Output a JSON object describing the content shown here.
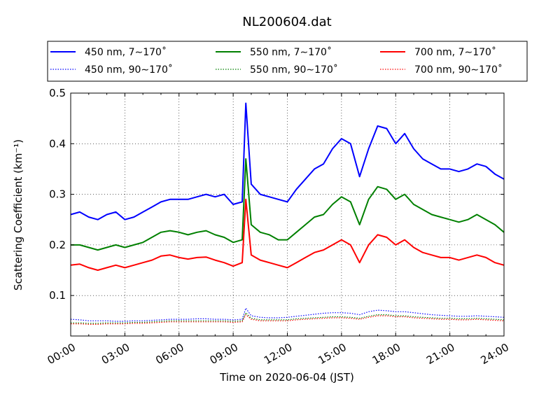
{
  "chart_data": {
    "type": "line",
    "title": "NL200604.dat",
    "xlabel": "Time on 2020-06-04 (JST)",
    "ylabel": "Scattering Coefficient (km⁻¹)",
    "x_unit": "hour (JST)",
    "xlim": [
      0,
      24
    ],
    "ylim": [
      0.02,
      0.5
    ],
    "xticks": [
      0,
      3,
      6,
      9,
      12,
      15,
      18,
      21,
      24
    ],
    "xtick_labels": [
      "00:00",
      "03:00",
      "06:00",
      "09:00",
      "12:00",
      "15:00",
      "18:00",
      "21:00",
      "24:00"
    ],
    "yticks": [
      0.1,
      0.2,
      0.3,
      0.4,
      0.5
    ],
    "ytick_labels": [
      "0.1",
      "0.2",
      "0.3",
      "0.4",
      "0.5"
    ],
    "grid": true,
    "legend_position": "top-outside",
    "x": [
      0,
      0.5,
      1,
      1.5,
      2,
      2.5,
      3,
      3.5,
      4,
      4.5,
      5,
      5.5,
      6,
      6.5,
      7,
      7.5,
      8,
      8.5,
      9,
      9.5,
      9.7,
      10,
      10.5,
      11,
      11.5,
      12,
      12.5,
      13,
      13.5,
      14,
      14.5,
      15,
      15.5,
      16,
      16.5,
      17,
      17.5,
      18,
      18.5,
      19,
      19.5,
      20,
      20.5,
      21,
      21.5,
      22,
      22.5,
      23,
      23.5,
      24
    ],
    "series": [
      {
        "name": "450 nm, 7∼170˚",
        "color": "#0000ff",
        "style": "solid",
        "values": [
          0.26,
          0.265,
          0.255,
          0.25,
          0.26,
          0.265,
          0.25,
          0.255,
          0.265,
          0.275,
          0.285,
          0.29,
          0.29,
          0.29,
          0.295,
          0.3,
          0.295,
          0.3,
          0.28,
          0.285,
          0.48,
          0.32,
          0.3,
          0.295,
          0.29,
          0.285,
          0.31,
          0.33,
          0.35,
          0.36,
          0.39,
          0.41,
          0.4,
          0.335,
          0.39,
          0.435,
          0.43,
          0.4,
          0.42,
          0.39,
          0.37,
          0.36,
          0.35,
          0.35,
          0.345,
          0.35,
          0.36,
          0.355,
          0.34,
          0.33
        ]
      },
      {
        "name": "550 nm, 7∼170˚",
        "color": "#008000",
        "style": "solid",
        "values": [
          0.2,
          0.2,
          0.195,
          0.19,
          0.195,
          0.2,
          0.195,
          0.2,
          0.205,
          0.215,
          0.225,
          0.228,
          0.225,
          0.22,
          0.225,
          0.228,
          0.22,
          0.215,
          0.205,
          0.21,
          0.37,
          0.24,
          0.225,
          0.22,
          0.21,
          0.21,
          0.225,
          0.24,
          0.255,
          0.26,
          0.28,
          0.295,
          0.285,
          0.24,
          0.29,
          0.315,
          0.31,
          0.29,
          0.3,
          0.28,
          0.27,
          0.26,
          0.255,
          0.25,
          0.245,
          0.25,
          0.26,
          0.25,
          0.24,
          0.225
        ]
      },
      {
        "name": "700 nm, 7∼170˚",
        "color": "#ff0000",
        "style": "solid",
        "values": [
          0.16,
          0.162,
          0.155,
          0.15,
          0.155,
          0.16,
          0.155,
          0.16,
          0.165,
          0.17,
          0.178,
          0.18,
          0.175,
          0.172,
          0.175,
          0.176,
          0.17,
          0.165,
          0.158,
          0.165,
          0.29,
          0.18,
          0.17,
          0.165,
          0.16,
          0.155,
          0.165,
          0.175,
          0.185,
          0.19,
          0.2,
          0.21,
          0.2,
          0.165,
          0.2,
          0.22,
          0.215,
          0.2,
          0.21,
          0.195,
          0.185,
          0.18,
          0.175,
          0.175,
          0.17,
          0.175,
          0.18,
          0.175,
          0.165,
          0.16
        ]
      },
      {
        "name": "450 nm, 90∼170˚",
        "color": "#0000ff",
        "style": "dotted",
        "values": [
          0.053,
          0.052,
          0.05,
          0.05,
          0.05,
          0.049,
          0.049,
          0.05,
          0.05,
          0.051,
          0.052,
          0.053,
          0.053,
          0.053,
          0.054,
          0.054,
          0.053,
          0.053,
          0.052,
          0.053,
          0.075,
          0.06,
          0.057,
          0.056,
          0.056,
          0.057,
          0.059,
          0.061,
          0.063,
          0.065,
          0.066,
          0.066,
          0.065,
          0.062,
          0.068,
          0.071,
          0.07,
          0.068,
          0.068,
          0.066,
          0.064,
          0.062,
          0.061,
          0.06,
          0.059,
          0.059,
          0.06,
          0.059,
          0.058,
          0.057
        ]
      },
      {
        "name": "550 nm, 90∼170˚",
        "color": "#008000",
        "style": "dotted",
        "values": [
          0.046,
          0.046,
          0.045,
          0.045,
          0.046,
          0.046,
          0.046,
          0.047,
          0.047,
          0.048,
          0.049,
          0.05,
          0.05,
          0.05,
          0.05,
          0.05,
          0.05,
          0.05,
          0.049,
          0.05,
          0.066,
          0.055,
          0.052,
          0.052,
          0.052,
          0.052,
          0.054,
          0.055,
          0.056,
          0.057,
          0.058,
          0.058,
          0.057,
          0.055,
          0.059,
          0.062,
          0.062,
          0.06,
          0.06,
          0.058,
          0.057,
          0.056,
          0.055,
          0.055,
          0.054,
          0.054,
          0.055,
          0.054,
          0.053,
          0.052
        ]
      },
      {
        "name": "700 nm, 90∼170˚",
        "color": "#ff0000",
        "style": "dotted",
        "values": [
          0.044,
          0.044,
          0.043,
          0.043,
          0.044,
          0.044,
          0.044,
          0.045,
          0.045,
          0.046,
          0.047,
          0.048,
          0.048,
          0.048,
          0.048,
          0.048,
          0.048,
          0.048,
          0.047,
          0.048,
          0.062,
          0.053,
          0.05,
          0.05,
          0.05,
          0.05,
          0.052,
          0.053,
          0.054,
          0.055,
          0.056,
          0.056,
          0.055,
          0.053,
          0.057,
          0.06,
          0.06,
          0.058,
          0.058,
          0.056,
          0.055,
          0.054,
          0.053,
          0.053,
          0.052,
          0.052,
          0.053,
          0.052,
          0.051,
          0.05
        ]
      }
    ],
    "legend_order": [
      0,
      1,
      2,
      3,
      4,
      5
    ]
  }
}
